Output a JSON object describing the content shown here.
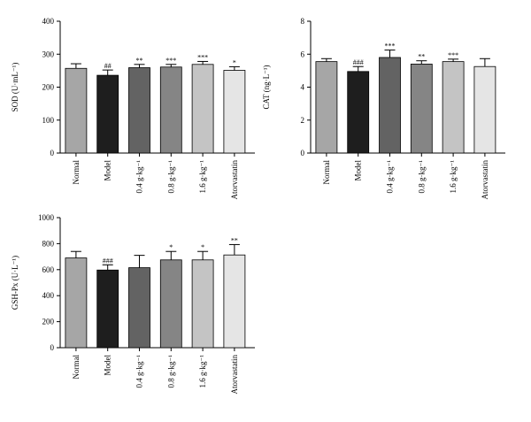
{
  "colors": {
    "Normal": "#a6a6a6",
    "Model": "#1e1e1e",
    "0.4 g·kg⁻¹": "#636363",
    "0.8 g·kg⁻¹": "#858585",
    "1.6 g·kg⁻¹": "#c4c4c4",
    "Atorvastatin": "#e5e5e5"
  },
  "chart_data": [
    {
      "type": "bar",
      "title": "",
      "xlabel": "",
      "ylabel": "SOD (U·mL⁻¹)",
      "ylim": [
        0,
        400
      ],
      "yticks": [
        0,
        100,
        200,
        300,
        400
      ],
      "categories": [
        "Normal",
        "Model",
        "0.4 g·kg⁻¹",
        "0.8 g·kg⁻¹",
        "1.6 g·kg⁻¹",
        "Atorvastatin"
      ],
      "values": [
        257,
        236,
        259,
        261,
        269,
        251
      ],
      "errors": [
        14,
        16,
        10,
        8,
        9,
        11
      ],
      "significance": [
        "",
        "##",
        "**",
        "***",
        "***",
        "*"
      ]
    },
    {
      "type": "bar",
      "title": "",
      "xlabel": "",
      "ylabel": "CAT (ng·L⁻¹)",
      "ylim": [
        0,
        8
      ],
      "yticks": [
        0,
        2,
        4,
        6,
        8
      ],
      "categories": [
        "Normal",
        "Model",
        "0.4 g·kg⁻¹",
        "0.8 g·kg⁻¹",
        "1.6 g·kg⁻¹",
        "Atorvastatin"
      ],
      "values": [
        5.55,
        4.95,
        5.8,
        5.4,
        5.55,
        5.25
      ],
      "errors": [
        0.18,
        0.3,
        0.45,
        0.2,
        0.15,
        0.48
      ],
      "significance": [
        "",
        "###",
        "***",
        "**",
        "***",
        ""
      ]
    },
    {
      "type": "bar",
      "title": "",
      "xlabel": "",
      "ylabel": "GSH-Px (U·L⁻¹)",
      "ylim": [
        0,
        1000
      ],
      "yticks": [
        0,
        200,
        400,
        600,
        800,
        1000
      ],
      "categories": [
        "Normal",
        "Model",
        "0.4 g·kg⁻¹",
        "0.8 g·kg⁻¹",
        "1.6 g·kg⁻¹",
        "Atorvastatin"
      ],
      "values": [
        690,
        597,
        615,
        675,
        675,
        713
      ],
      "errors": [
        50,
        40,
        95,
        65,
        65,
        80
      ],
      "significance": [
        "",
        "###",
        "",
        "*",
        "*",
        "**"
      ]
    }
  ]
}
